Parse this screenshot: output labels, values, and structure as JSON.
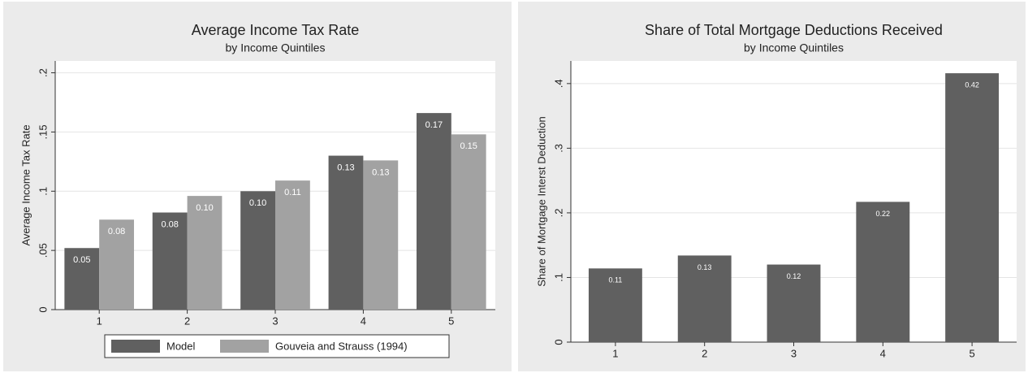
{
  "chart_data": [
    {
      "type": "bar",
      "title": "Average Income Tax Rate",
      "subtitle": "by Income Quintiles",
      "y_label": "Average Income Tax Rate",
      "categories": [
        "1",
        "2",
        "3",
        "4",
        "5"
      ],
      "series": [
        {
          "name": "Model",
          "color": "#606060",
          "values": [
            0.052,
            0.082,
            0.1,
            0.13,
            0.166
          ],
          "value_labels": [
            "0.05",
            "0.08",
            "0.10",
            "0.13",
            "0.17"
          ]
        },
        {
          "name": "Gouveia and Strauss (1994)",
          "color": "#a2a2a2",
          "values": [
            0.076,
            0.096,
            0.109,
            0.126,
            0.148
          ],
          "value_labels": [
            "0.08",
            "0.10",
            "0.11",
            "0.13",
            "0.15"
          ]
        }
      ],
      "ylim": [
        0,
        0.21
      ],
      "yticks": [
        {
          "value": 0,
          "label": "0"
        },
        {
          "value": 0.05,
          "label": ".05"
        },
        {
          "value": 0.1,
          "label": ".1"
        },
        {
          "value": 0.15,
          "label": ".15"
        },
        {
          "value": 0.2,
          "label": ".2"
        }
      ],
      "grid": true,
      "legend": "bottom"
    },
    {
      "type": "bar",
      "title": "Share of Total Mortgage Deductions Received",
      "subtitle": "by Income Quintiles",
      "y_label": "Share of Mortgage Interst Deduction",
      "categories": [
        "1",
        "2",
        "3",
        "4",
        "5"
      ],
      "series": [
        {
          "color": "#606060",
          "values": [
            0.114,
            0.134,
            0.12,
            0.217,
            0.416
          ],
          "value_labels": [
            "0.11",
            "0.13",
            "0.12",
            "0.22",
            "0.42"
          ]
        }
      ],
      "ylim": [
        0,
        0.435
      ],
      "yticks": [
        {
          "value": 0,
          "label": "0"
        },
        {
          "value": 0.1,
          "label": ".1"
        },
        {
          "value": 0.2,
          "label": ".2"
        },
        {
          "value": 0.3,
          "label": ".3"
        },
        {
          "value": 0.4,
          "label": ".4"
        }
      ],
      "grid": true
    }
  ]
}
